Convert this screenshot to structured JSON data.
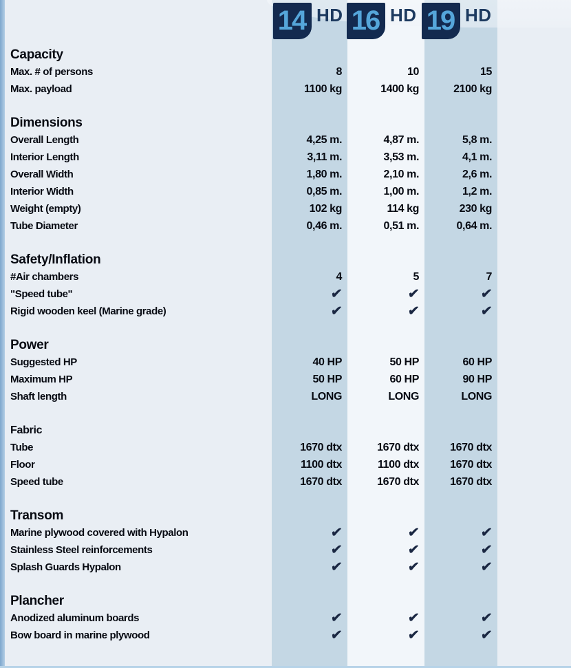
{
  "page_title": "Inflatable boat specification comparison",
  "check_icon": "✔",
  "colors": {
    "page_bg": "#e9eef4",
    "band_blue": "#c4d7e4",
    "band_light": "#f2f6fa",
    "badge_navy": "#132a4f",
    "badge_digit_blue": "#55a6da",
    "hd_text": "#1d3a5f",
    "text": "#070a12",
    "check": "#1a2742",
    "left_strip": "#8fb4d6",
    "bottom_line": "#b7d3e8"
  },
  "columns": [
    {
      "badge": "14",
      "suffix": "HD",
      "band": "blue"
    },
    {
      "badge": "16",
      "suffix": "HD",
      "band": "light"
    },
    {
      "badge": "19",
      "suffix": "HD",
      "band": "blue"
    }
  ],
  "sections": [
    {
      "header": "Capacity",
      "rows": [
        {
          "label": "Max. # of persons",
          "type": "text",
          "values": [
            "8",
            "10",
            "15"
          ]
        },
        {
          "label": "Max. payload",
          "type": "text",
          "values": [
            "1100 kg",
            "1400 kg",
            "2100 kg"
          ]
        }
      ]
    },
    {
      "header": "Dimensions",
      "rows": [
        {
          "label": "Overall Length",
          "type": "text",
          "values": [
            "4,25 m.",
            "4,87 m.",
            "5,8 m."
          ]
        },
        {
          "label": "Interior Length",
          "type": "text",
          "values": [
            "3,11 m.",
            "3,53 m.",
            "4,1 m."
          ]
        },
        {
          "label": "Overall Width",
          "type": "text",
          "values": [
            "1,80 m.",
            "2,10 m.",
            "2,6 m."
          ]
        },
        {
          "label": "Interior Width",
          "type": "text",
          "values": [
            "0,85 m.",
            "1,00 m.",
            "1,2 m."
          ]
        },
        {
          "label": "Weight (empty)",
          "type": "text",
          "values": [
            "102 kg",
            "114 kg",
            "230 kg"
          ]
        },
        {
          "label": "Tube Diameter",
          "type": "text",
          "values": [
            "0,46 m.",
            "0,51 m.",
            "0,64 m."
          ]
        }
      ]
    },
    {
      "header": "Safety/Inflation",
      "rows": [
        {
          "label": "#Air chambers",
          "type": "text",
          "values": [
            "4",
            "5",
            "7"
          ]
        },
        {
          "label": "\"Speed tube\"",
          "type": "check",
          "values": [
            true,
            true,
            true
          ]
        },
        {
          "label": "Rigid wooden keel (Marine grade)",
          "type": "check",
          "values": [
            true,
            true,
            true
          ]
        }
      ]
    },
    {
      "header": "Power",
      "rows": [
        {
          "label": "Suggested HP",
          "type": "text",
          "values": [
            "40 HP",
            "50 HP",
            "60 HP"
          ]
        },
        {
          "label": "Maximum HP",
          "type": "text",
          "values": [
            "50 HP",
            "60 HP",
            "90 HP"
          ]
        },
        {
          "label": "Shaft length",
          "type": "text",
          "values": [
            "LONG",
            "LONG",
            "LONG"
          ]
        }
      ]
    },
    {
      "header": "Fabric",
      "small_header": true,
      "rows": [
        {
          "label": "Tube",
          "type": "text",
          "values": [
            "1670 dtx",
            "1670 dtx",
            "1670 dtx"
          ]
        },
        {
          "label": "Floor",
          "type": "text",
          "values": [
            "1100 dtx",
            "1100 dtx",
            "1670 dtx"
          ]
        },
        {
          "label": "Speed tube",
          "type": "text",
          "values": [
            "1670 dtx",
            "1670 dtx",
            "1670 dtx"
          ]
        }
      ]
    },
    {
      "header": "Transom",
      "rows": [
        {
          "label": "Marine plywood covered with Hypalon",
          "type": "check",
          "values": [
            true,
            true,
            true
          ]
        },
        {
          "label": "Stainless Steel reinforcements",
          "type": "check",
          "values": [
            true,
            true,
            true
          ]
        },
        {
          "label": "Splash Guards Hypalon",
          "type": "check",
          "values": [
            true,
            true,
            true
          ]
        }
      ]
    },
    {
      "header": "Plancher",
      "rows": [
        {
          "label": "Anodized aluminum boards",
          "type": "check",
          "values": [
            true,
            true,
            true
          ]
        },
        {
          "label": "Bow board in marine plywood",
          "type": "check",
          "values": [
            true,
            true,
            true
          ]
        }
      ]
    }
  ]
}
